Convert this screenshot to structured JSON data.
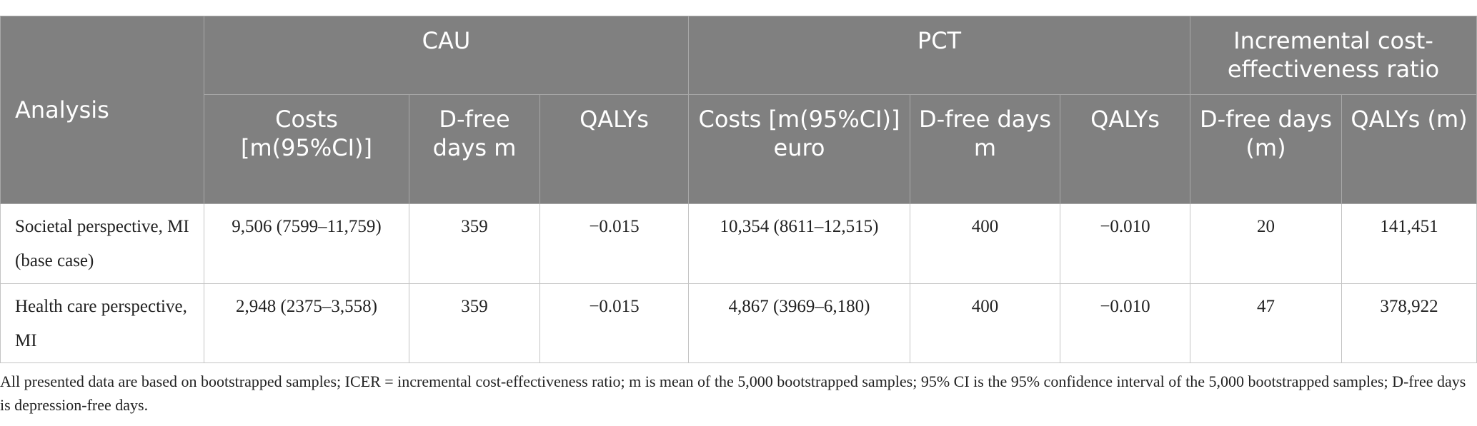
{
  "header": {
    "analysis": "Analysis",
    "groups": {
      "cau": "CAU",
      "pct": "PCT",
      "icer": "Incremental cost-effectiveness ratio"
    },
    "cau_cols": [
      "Costs [m(95%CI)]",
      "D-free days m",
      "QALYs"
    ],
    "pct_cols": [
      "Costs [m(95%CI)] euro",
      "D-free days m",
      "QALYs"
    ],
    "icer_cols": [
      "D-free days (m)",
      "QALYs (m)"
    ]
  },
  "rows": [
    {
      "analysis": "Societal perspective, MI (base case)",
      "cau_costs": "9,506 (7599–11,759)",
      "cau_dfree": "359",
      "cau_qalys": "−0.015",
      "pct_costs": "10,354 (8611–12,515)",
      "pct_dfree": "400",
      "pct_qalys": "−0.010",
      "icer_dfree": "20",
      "icer_qalys": "141,451"
    },
    {
      "analysis": "Health care perspective, MI",
      "cau_costs": "2,948 (2375–3,558)",
      "cau_dfree": "359",
      "cau_qalys": "−0.015",
      "pct_costs": "4,867 (3969–6,180)",
      "pct_dfree": "400",
      "pct_qalys": "−0.010",
      "icer_dfree": "47",
      "icer_qalys": "378,922"
    }
  ],
  "footnote": "All presented data are based on bootstrapped samples; ICER = incremental cost-effectiveness ratio; m is mean of the 5,000 bootstrapped samples; 95% CI is the 95% confidence interval of the 5,000 bootstrapped samples; D-free days is depression-free days.",
  "colors": {
    "header_bg": "#808080",
    "header_text": "#ffffff",
    "border": "#c4c4c4"
  }
}
